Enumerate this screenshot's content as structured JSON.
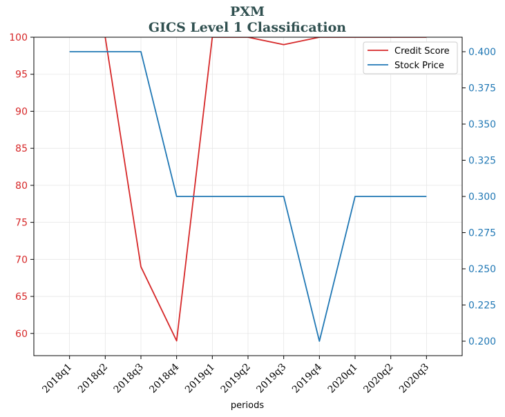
{
  "chart_data": {
    "type": "line",
    "title": "PXM",
    "subtitle": "GICS Level 1 Classification",
    "xlabel": "periods",
    "categories": [
      "2018q1",
      "2018q2",
      "2018q3",
      "2018q4",
      "2019q1",
      "2019q2",
      "2019q3",
      "2019q4",
      "2020q1",
      "2020q2",
      "2020q3"
    ],
    "series": [
      {
        "name": "Credit Score",
        "axis": "left",
        "color": "#d62728",
        "values": [
          104,
          100,
          69,
          59,
          100,
          100,
          99,
          100,
          100,
          100,
          100
        ]
      },
      {
        "name": "Stock Price",
        "axis": "right",
        "color": "#1f77b4",
        "values": [
          0.4,
          0.4,
          0.4,
          0.3,
          0.3,
          0.3,
          0.3,
          0.2,
          0.3,
          0.3,
          0.3
        ]
      }
    ],
    "ylim_left": [
      57,
      100
    ],
    "yticks_left": [
      "60",
      "65",
      "70",
      "75",
      "80",
      "85",
      "90",
      "95",
      "100"
    ],
    "ylim_right": [
      0.19,
      0.41
    ],
    "yticks_right": [
      "0.200",
      "0.225",
      "0.250",
      "0.275",
      "0.300",
      "0.325",
      "0.350",
      "0.375",
      "0.400"
    ],
    "grid": true,
    "legend_position": "top-right"
  }
}
